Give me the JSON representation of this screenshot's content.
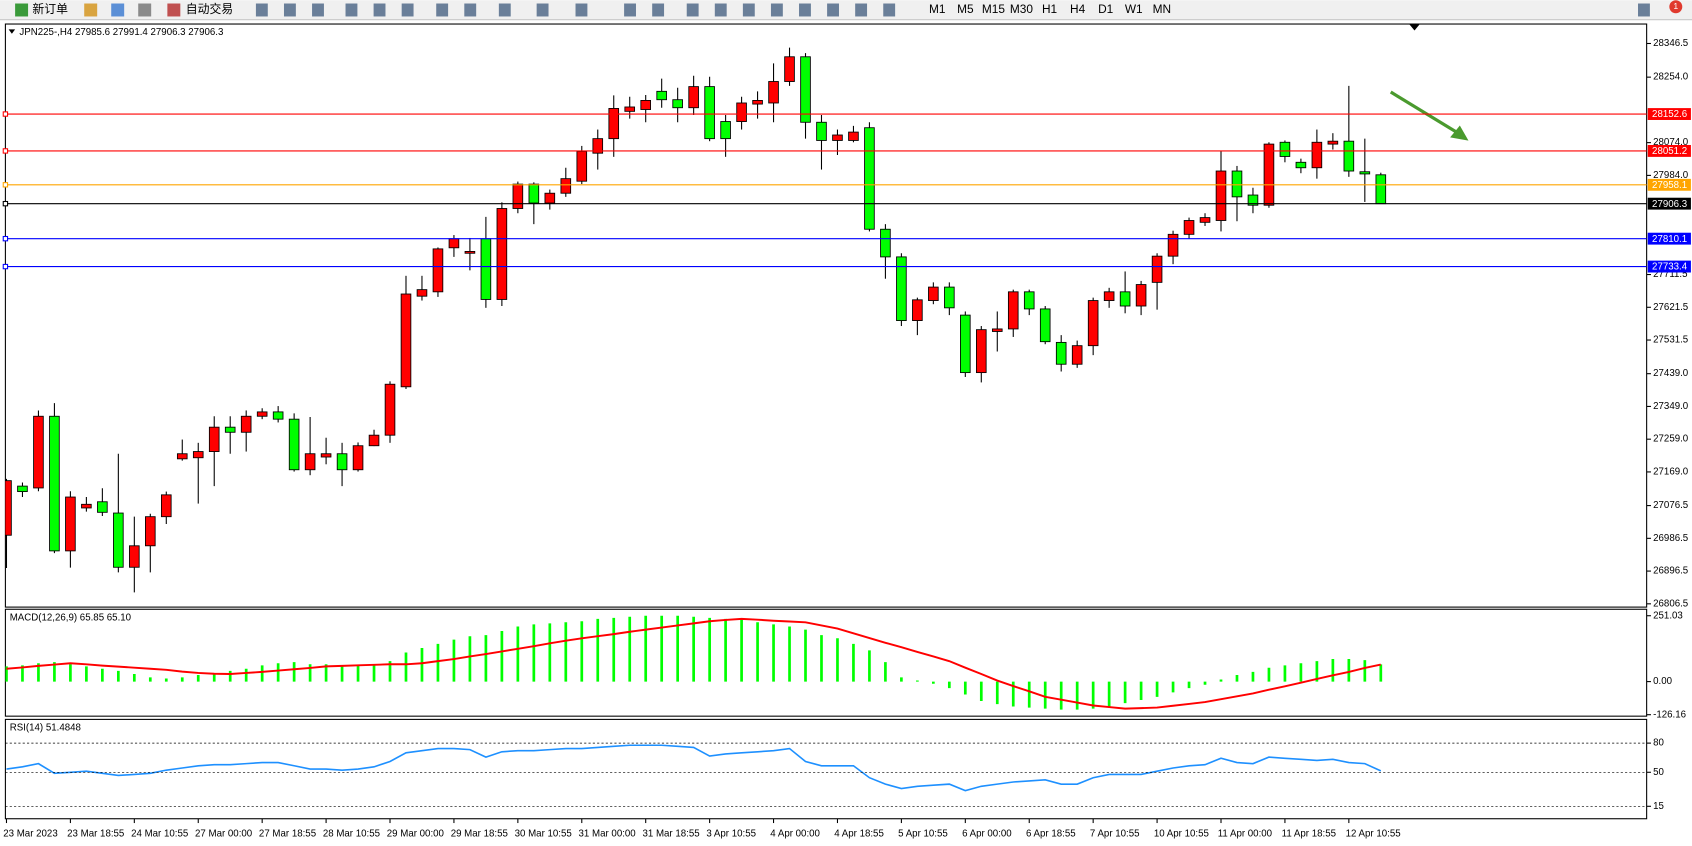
{
  "toolbar": {
    "new_order": "新订单",
    "auto_trading": "自动交易",
    "timeframes": [
      "M1",
      "M5",
      "M15",
      "M30",
      "H1",
      "H4",
      "D1",
      "W1",
      "MN"
    ],
    "notifications": 1
  },
  "chart_data": [
    {
      "type": "candlestick",
      "title": "JPN225-,H4  27985.6 27991.4 27906.3 27906.3",
      "categories": [
        "23 Mar 2023",
        null,
        null,
        null,
        "23 Mar 18:55",
        null,
        null,
        null,
        "24 Mar 10:55",
        null,
        null,
        null,
        "27 Mar 00:00",
        null,
        null,
        null,
        "27 Mar 18:55",
        null,
        null,
        null,
        "28 Mar 10:55",
        null,
        null,
        null,
        "29 Mar 00:00",
        null,
        null,
        null,
        "29 Mar 18:55",
        null,
        null,
        null,
        "30 Mar 10:55",
        null,
        null,
        null,
        "31 Mar 00:00",
        null,
        null,
        null,
        "31 Mar 18:55",
        null,
        null,
        null,
        "3 Apr 10:55",
        null,
        null,
        null,
        "4 Apr 00:00",
        null,
        null,
        null,
        "4 Apr 18:55",
        null,
        null,
        null,
        "5 Apr 10:55",
        null,
        null,
        null,
        "6 Apr 00:00",
        null,
        null,
        null,
        "6 Apr 18:55",
        null,
        null,
        null,
        "7 Apr 10:55",
        null,
        null,
        null,
        "10 Apr 10:55",
        null,
        null,
        null,
        "11 Apr 00:00",
        null,
        null,
        null,
        "11 Apr 18:55",
        null,
        null,
        null,
        "12 Apr 10:55",
        null,
        null
      ],
      "open": [
        26995,
        27130,
        27125,
        27322,
        26952,
        27070,
        27087,
        27056,
        26907,
        26966,
        27046,
        27205,
        27208,
        27225,
        27292,
        27278,
        27322,
        27334,
        27314,
        27175,
        27210,
        27219,
        27175,
        27241,
        27270,
        27403,
        27652,
        27664,
        27785,
        27770,
        27810,
        27643,
        27893,
        27960,
        27908,
        27935,
        27968,
        28045,
        28085,
        28160,
        28165,
        28215,
        28192,
        28170,
        28228,
        28132,
        28132,
        28180,
        28183,
        28242,
        28310,
        28130,
        28080,
        28080,
        28115,
        27836,
        27760,
        27585,
        27640,
        27677,
        27600,
        27442,
        27555,
        27562,
        27664,
        27617,
        27525,
        27465,
        27516,
        27640,
        27664,
        27625,
        27690,
        27762,
        27822,
        27855,
        27860,
        27996,
        27930,
        27902,
        28075,
        28020,
        28005,
        28070,
        28078,
        27994,
        27985.6
      ],
      "high": [
        27150,
        27140,
        27338,
        27358,
        27116,
        27100,
        27124,
        27219,
        27046,
        27054,
        27115,
        27258,
        27249,
        27322,
        27322,
        27338,
        27344,
        27350,
        27330,
        27320,
        27263,
        27249,
        27250,
        27285,
        27418,
        27708,
        27708,
        27786,
        27820,
        27812,
        27870,
        27910,
        27967,
        27965,
        27945,
        28005,
        28065,
        28110,
        28204,
        28200,
        28205,
        28250,
        28225,
        28258,
        28255,
        28150,
        28200,
        28215,
        28292,
        28335,
        28320,
        28150,
        28110,
        28120,
        28130,
        27850,
        27770,
        27648,
        27690,
        27690,
        27610,
        27570,
        27610,
        27670,
        27670,
        27625,
        27545,
        27530,
        27648,
        27675,
        27720,
        27694,
        27770,
        27832,
        27868,
        27880,
        28050,
        28010,
        27950,
        28075,
        28080,
        28030,
        28110,
        28100,
        28230,
        28085,
        27991.4
      ],
      "low": [
        26905,
        27100,
        27116,
        26946,
        26906,
        27060,
        27048,
        26893,
        26838,
        26893,
        27026,
        27200,
        27082,
        27130,
        27219,
        27225,
        27314,
        27305,
        27170,
        27160,
        27190,
        27130,
        27170,
        27240,
        27249,
        27397,
        27640,
        27650,
        27760,
        27723,
        27620,
        27625,
        27880,
        27850,
        27890,
        27925,
        27960,
        28000,
        28035,
        28140,
        28130,
        28170,
        28130,
        28150,
        28078,
        28035,
        28110,
        28140,
        28130,
        28230,
        28085,
        28000,
        28040,
        28075,
        27830,
        27700,
        27570,
        27545,
        27630,
        27600,
        27430,
        27415,
        27500,
        27540,
        27600,
        27520,
        27445,
        27455,
        27490,
        27620,
        27605,
        27600,
        27615,
        27740,
        27810,
        27845,
        27830,
        27858,
        27880,
        27895,
        28020,
        27990,
        27975,
        28055,
        27980,
        27911,
        27906.3
      ],
      "close": [
        27145,
        27115,
        27322,
        26952,
        27100,
        27080,
        27058,
        26907,
        26966,
        27046,
        27106,
        27219,
        27225,
        27292,
        27278,
        27322,
        27334,
        27314,
        27175,
        27219,
        27219,
        27175,
        27241,
        27270,
        27410,
        27658,
        27670,
        27782,
        27810,
        27775,
        27643,
        27893,
        27960,
        27908,
        27935,
        27975,
        28050,
        28085,
        28168,
        28172,
        28190,
        28192,
        28170,
        28228,
        28085,
        28085,
        28183,
        28190,
        28242,
        28310,
        28130,
        28080,
        28095,
        28103,
        27836,
        27760,
        27585,
        27642,
        27677,
        27620,
        27442,
        27560,
        27562,
        27664,
        27617,
        27527,
        27465,
        27516,
        27640,
        27664,
        27625,
        27684,
        27762,
        27822,
        27860,
        27868,
        27996,
        27925,
        27902,
        28070,
        28036,
        28005,
        28075,
        28078,
        27996,
        27988,
        27906.3
      ],
      "up_color": "#ff0000",
      "down_color": "#00ff00",
      "ylim": [
        26797.5,
        28400
      ],
      "yticks": [
        28346.5,
        {
          "value": 28254,
          "label": "28254.0"
        },
        {
          "value": 28074,
          "label": "28074.0"
        },
        {
          "value": 27984,
          "label": "27984.0"
        },
        27711.5,
        27621.5,
        27531.5,
        {
          "value": 27439,
          "label": "27439.0"
        },
        {
          "value": 27349,
          "label": "27349.0"
        },
        {
          "value": 27259,
          "label": "27259.0"
        },
        {
          "value": 27169,
          "label": "27169.0"
        },
        27076.5,
        26986.5,
        26896.5,
        26806.5
      ],
      "levels": [
        {
          "value": 28152.6,
          "color": "#ff0000"
        },
        {
          "value": 28051.2,
          "color": "#ff0000"
        },
        {
          "value": 27958.1,
          "color": "#ffa500"
        },
        {
          "value": 27906.3,
          "color": "#000000"
        },
        {
          "value": 27810.1,
          "color": "#0000ff"
        },
        {
          "value": 27733.4,
          "color": "#0000ff"
        }
      ]
    },
    {
      "type": "macd",
      "title": "MACD(12,26,9) 65.85 65.10",
      "series": [
        {
          "type": "bar",
          "color": "#00ff00",
          "values": [
            58,
            62,
            70,
            74,
            66,
            58,
            49,
            41,
            29,
            16,
            12,
            16,
            25,
            33,
            41,
            49,
            62,
            70,
            74,
            66,
            66,
            62,
            62,
            66,
            78,
            111,
            128,
            144,
            160,
            173,
            177,
            193,
            210,
            218,
            222,
            226,
            230,
            239,
            243,
            247,
            251,
            251,
            251,
            247,
            243,
            239,
            235,
            226,
            218,
            210,
            198,
            177,
            165,
            144,
            119,
            74,
            16,
            4,
            -8,
            -25,
            -49,
            -74,
            -86,
            -95,
            -99,
            -103,
            -107,
            -107,
            -103,
            -95,
            -82,
            -70,
            -58,
            -41,
            -25,
            -12,
            8,
            25,
            37,
            53,
            62,
            70,
            78,
            86,
            86,
            82,
            65.85
          ]
        },
        {
          "type": "line",
          "color": "#ff0000",
          "values": [
            49,
            54,
            60,
            65,
            70,
            66,
            61,
            57,
            53,
            49,
            45,
            38,
            33,
            30,
            29,
            33,
            37,
            42,
            47,
            52,
            58,
            60,
            62,
            64,
            66,
            66,
            70,
            78,
            86,
            96,
            105,
            115,
            125,
            135,
            146,
            156,
            165,
            173,
            181,
            190,
            198,
            206,
            214,
            222,
            230,
            235,
            239,
            236,
            232,
            229,
            226,
            214,
            202,
            184,
            166,
            148,
            131,
            113,
            96,
            78,
            53,
            29,
            4,
            -17,
            -37,
            -58,
            -69,
            -80,
            -91,
            -97,
            -103,
            -101,
            -99,
            -92,
            -85,
            -78,
            -67,
            -56,
            -45,
            -31,
            -18,
            -4,
            10,
            24,
            37,
            52,
            65.1
          ]
        }
      ],
      "ylim": [
        -131.7,
        275.7
      ],
      "yticks": [
        251.03,
        {
          "value": 0,
          "label": "0.00"
        },
        -126.16
      ]
    },
    {
      "type": "line",
      "title": "RSI(14) 51.4848",
      "color": "#1e90ff",
      "values": [
        53.3,
        55.6,
        58.9,
        48.9,
        50,
        51.1,
        48.9,
        46.7,
        47.8,
        48.9,
        52.2,
        54.4,
        56.7,
        57.8,
        57.8,
        58.9,
        60,
        60,
        56.7,
        53.3,
        53.3,
        52.2,
        53.3,
        55.6,
        61.1,
        70,
        72.2,
        74.4,
        74.4,
        73.3,
        65.6,
        71.1,
        72.2,
        72.2,
        73.3,
        74.4,
        74.4,
        75.6,
        76.7,
        77.8,
        77.8,
        77.8,
        76.7,
        75.6,
        66.7,
        68.9,
        70,
        71.1,
        72.2,
        74.4,
        61.1,
        56.7,
        56.7,
        56.7,
        44.4,
        37.8,
        33.3,
        35.6,
        36.7,
        37.8,
        31.1,
        35.6,
        37.8,
        40,
        41.1,
        42.2,
        37.8,
        37.8,
        44.4,
        47.8,
        47.8,
        47.8,
        51.1,
        54.4,
        56.7,
        57.8,
        64.4,
        60,
        58.9,
        65.6,
        64.4,
        63.3,
        62.2,
        63.3,
        60,
        58.9,
        51.4848
      ],
      "ylim": [
        2.2,
        104.4
      ],
      "yticks": [
        80,
        50,
        15
      ],
      "grid": true
    }
  ]
}
